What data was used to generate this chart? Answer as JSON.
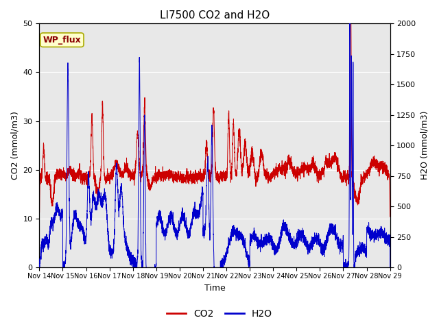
{
  "title": "LI7500 CO2 and H2O",
  "xlabel": "Time",
  "ylabel_left": "CO2 (mmol/m3)",
  "ylabel_right": "H2O (mmol/m3)",
  "annotation_text": "WP_flux",
  "annotation_bg": "#ffffcc",
  "annotation_border": "#aaaa00",
  "annotation_color": "#8b0000",
  "xlim": [
    0,
    15
  ],
  "ylim_left": [
    0,
    50
  ],
  "ylim_right": [
    0,
    2000
  ],
  "xtick_labels": [
    "Nov 14",
    "Nov 15",
    "Nov 16",
    "Nov 17",
    "Nov 18",
    "Nov 19",
    "Nov 20",
    "Nov 21",
    "Nov 22",
    "Nov 23",
    "Nov 24",
    "Nov 25",
    "Nov 26",
    "Nov 27",
    "Nov 28",
    "Nov 29"
  ],
  "co2_color": "#cc0000",
  "h2o_color": "#0000cc",
  "bg_color": "#e8e8e8",
  "grid_color": "#ffffff",
  "linewidth": 0.7,
  "legend_co2": "CO2",
  "legend_h2o": "H2O"
}
